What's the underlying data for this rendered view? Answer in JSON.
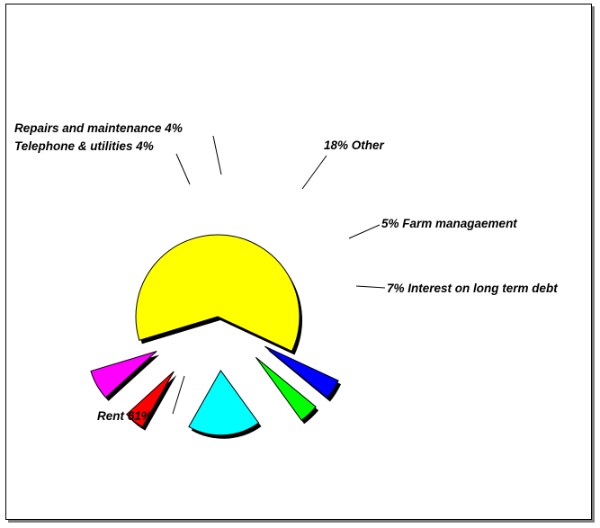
{
  "chart_data": {
    "type": "pie",
    "exploded": true,
    "title": "",
    "slices": [
      {
        "label": "Rent 61%",
        "value": 61,
        "color": "#ffff00"
      },
      {
        "label": "7% Interest on long term debt",
        "value": 7,
        "color": "#ff00ff"
      },
      {
        "label": "5% Farm managaement",
        "value": 5,
        "color": "#ff0000"
      },
      {
        "label": "18% Other",
        "value": 18,
        "color": "#00ffff"
      },
      {
        "label": "Repairs and maintenance 4%",
        "value": 4,
        "color": "#00ff00"
      },
      {
        "label": "Telephone & utilities 4%",
        "value": 4,
        "color": "#0000ff"
      }
    ]
  }
}
